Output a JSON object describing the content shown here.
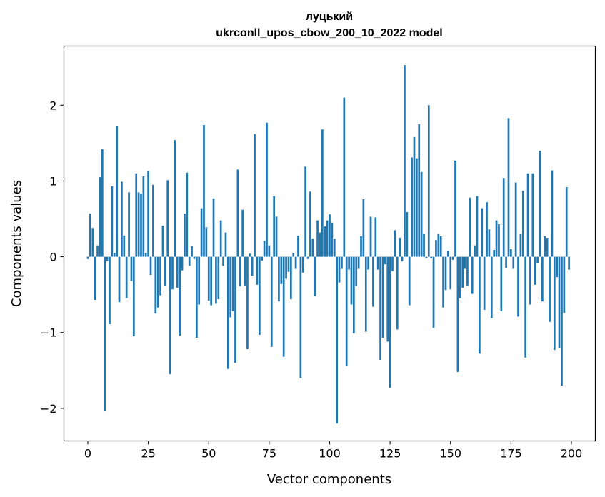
{
  "chart_data": {
    "type": "bar",
    "title": "луцький",
    "subtitle": "ukrconll_upos_cbow_200_10_2022 model",
    "xlabel": "Vector components",
    "ylabel": "Components values",
    "xlim": [
      -9.9,
      209.9
    ],
    "ylim": [
      -2.43,
      2.78
    ],
    "xticks": [
      0,
      25,
      50,
      75,
      100,
      125,
      150,
      175,
      200
    ],
    "xtick_labels": [
      "0",
      "25",
      "50",
      "75",
      "100",
      "125",
      "150",
      "175",
      "200"
    ],
    "yticks": [
      -2,
      -1,
      0,
      1,
      2
    ],
    "ytick_labels": [
      "−2",
      "−1",
      "0",
      "1",
      "2"
    ],
    "grid": false,
    "bar_color": "#1f77b4",
    "x": [
      0,
      1,
      2,
      3,
      4,
      5,
      6,
      7,
      8,
      9,
      10,
      11,
      12,
      13,
      14,
      15,
      16,
      17,
      18,
      19,
      20,
      21,
      22,
      23,
      24,
      25,
      26,
      27,
      28,
      29,
      30,
      31,
      32,
      33,
      34,
      35,
      36,
      37,
      38,
      39,
      40,
      41,
      42,
      43,
      44,
      45,
      46,
      47,
      48,
      49,
      50,
      51,
      52,
      53,
      54,
      55,
      56,
      57,
      58,
      59,
      60,
      61,
      62,
      63,
      64,
      65,
      66,
      67,
      68,
      69,
      70,
      71,
      72,
      73,
      74,
      75,
      76,
      77,
      78,
      79,
      80,
      81,
      82,
      83,
      84,
      85,
      86,
      87,
      88,
      89,
      90,
      91,
      92,
      93,
      94,
      95,
      96,
      97,
      98,
      99,
      100,
      101,
      102,
      103,
      104,
      105,
      106,
      107,
      108,
      109,
      110,
      111,
      112,
      113,
      114,
      115,
      116,
      117,
      118,
      119,
      120,
      121,
      122,
      123,
      124,
      125,
      126,
      127,
      128,
      129,
      130,
      131,
      132,
      133,
      134,
      135,
      136,
      137,
      138,
      139,
      140,
      141,
      142,
      143,
      144,
      145,
      146,
      147,
      148,
      149,
      150,
      151,
      152,
      153,
      154,
      155,
      156,
      157,
      158,
      159,
      160,
      161,
      162,
      163,
      164,
      165,
      166,
      167,
      168,
      169,
      170,
      171,
      172,
      173,
      174,
      175,
      176,
      177,
      178,
      179,
      180,
      181,
      182,
      183,
      184,
      185,
      186,
      187,
      188,
      189,
      190,
      191,
      192,
      193,
      194,
      195,
      196,
      197,
      198,
      199
    ],
    "values": [
      -0.03,
      0.57,
      0.38,
      -0.57,
      0.15,
      1.05,
      1.42,
      -2.04,
      -0.06,
      -0.89,
      0.93,
      0.05,
      1.73,
      -0.6,
      0.99,
      0.28,
      -0.55,
      0.85,
      -0.32,
      -1.05,
      1.1,
      0.85,
      0.83,
      1.06,
      0.05,
      1.13,
      -0.24,
      0.95,
      -0.75,
      -0.67,
      -0.51,
      0.41,
      -0.38,
      1.01,
      -1.55,
      -0.43,
      1.54,
      -0.41,
      -1.04,
      -0.18,
      0.57,
      1.11,
      -0.12,
      0.14,
      -0.03,
      -1.07,
      -0.63,
      0.64,
      1.74,
      0.39,
      -0.58,
      -0.64,
      0.77,
      -0.62,
      -0.56,
      0.48,
      -0.12,
      0.32,
      -1.48,
      -0.8,
      -0.72,
      -1.4,
      1.15,
      -0.39,
      0.62,
      -0.38,
      -1.22,
      0.04,
      -0.25,
      1.62,
      -0.37,
      -1.03,
      -0.05,
      0.21,
      1.77,
      0.15,
      -1.19,
      0.8,
      0.53,
      -0.59,
      -0.36,
      -1.32,
      -0.29,
      -0.2,
      -0.56,
      0.05,
      -0.16,
      0.28,
      -1.6,
      -0.21,
      1.19,
      -0.03,
      0.86,
      0.24,
      -0.52,
      0.48,
      0.32,
      1.68,
      0.4,
      0.48,
      0.56,
      0.45,
      0.24,
      -2.2,
      -0.34,
      -0.16,
      2.1,
      -1.44,
      -0.17,
      -0.63,
      -1.01,
      -0.39,
      -0.16,
      0.27,
      0.76,
      -0.99,
      -0.17,
      0.53,
      -0.66,
      0.52,
      -0.17,
      -1.36,
      -1.07,
      -0.1,
      -1.12,
      -1.73,
      -0.19,
      0.35,
      -0.96,
      0.25,
      -0.06,
      2.53,
      0.59,
      -0.64,
      1.31,
      1.58,
      1.3,
      1.75,
      1.12,
      0.3,
      -0.02,
      2.0,
      -0.02,
      -0.94,
      0.22,
      0.3,
      0.27,
      -0.67,
      -0.44,
      0.08,
      -0.43,
      -0.04,
      1.27,
      -1.52,
      -0.55,
      -0.41,
      -0.16,
      -0.38,
      0.78,
      -0.49,
      0.15,
      0.8,
      -1.28,
      0.64,
      -0.7,
      0.72,
      0.36,
      -0.81,
      0.09,
      0.48,
      0.43,
      -0.72,
      1.04,
      -0.15,
      1.83,
      0.1,
      -0.16,
      0.98,
      -0.79,
      0.3,
      0.87,
      -1.33,
      1.1,
      -0.63,
      1.1,
      -0.37,
      -0.08,
      1.4,
      -0.59,
      0.27,
      0.25,
      -0.86,
      1.14,
      -1.23,
      -0.27,
      -1.21,
      -1.7,
      -0.74,
      0.92,
      -0.17
    ]
  }
}
